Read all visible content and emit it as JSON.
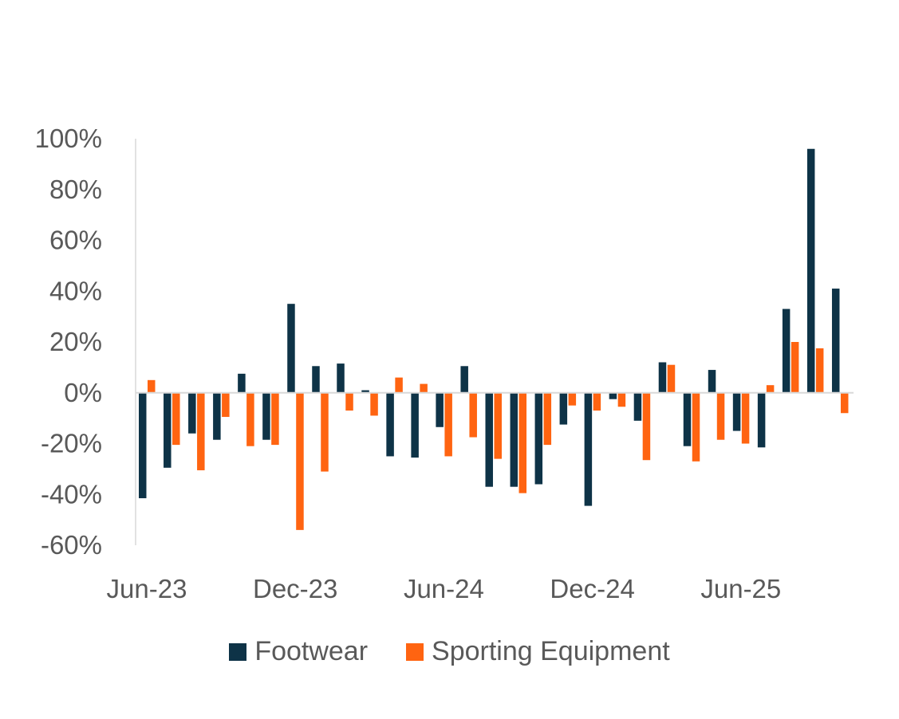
{
  "chart_data": {
    "type": "bar",
    "title": "",
    "xlabel": "",
    "ylabel": "",
    "ylim": [
      -60,
      100
    ],
    "yticks": [
      100,
      80,
      60,
      40,
      20,
      0,
      -20,
      -40,
      -60
    ],
    "ytick_labels": [
      "100%",
      "80%",
      "60%",
      "40%",
      "20%",
      "0%",
      "-20%",
      "-40%",
      "-60%"
    ],
    "xtick_labels": [
      {
        "label": "Jun-23",
        "index": 0
      },
      {
        "label": "Dec-23",
        "index": 6
      },
      {
        "label": "Jun-24",
        "index": 12
      },
      {
        "label": "Dec-24",
        "index": 18
      },
      {
        "label": "Jun-25",
        "index": 24
      }
    ],
    "categories": [
      "Jun-23",
      "Jul-23",
      "Aug-23",
      "Sep-23",
      "Oct-23",
      "Nov-23",
      "Dec-23",
      "Jan-24",
      "Feb-24",
      "Mar-24",
      "Apr-24",
      "May-24",
      "Jun-24",
      "Jul-24",
      "Aug-24",
      "Sep-24",
      "Oct-24",
      "Nov-24",
      "Dec-24",
      "Jan-25",
      "Feb-25",
      "Mar-25",
      "Apr-25",
      "May-25",
      "Jun-25",
      "Jul-25",
      "Aug-25",
      "Sep-25",
      "Oct-25"
    ],
    "series": [
      {
        "name": "Footwear",
        "color": "#0E3347",
        "values": [
          -41.5,
          -29.5,
          -16,
          -18.5,
          7.5,
          -18.5,
          35,
          10.5,
          11.5,
          1,
          -25,
          -25.5,
          -13.5,
          10.5,
          -37,
          -37,
          -36,
          -12.5,
          -44.5,
          -2.5,
          -11,
          12,
          -21,
          9,
          -15,
          -21.5,
          33,
          96,
          41
        ]
      },
      {
        "name": "Sporting Equipment",
        "color": "#FF6411",
        "values": [
          5,
          -20.5,
          -30.5,
          -9.5,
          -21,
          -20.5,
          -54,
          -31,
          -7,
          -9,
          6,
          3.5,
          -25,
          -17.5,
          -26,
          -39.5,
          -20.5,
          -5,
          -7,
          -5.5,
          -26.5,
          11,
          -27,
          -18.5,
          -20,
          3,
          20,
          17.5,
          -8
        ]
      }
    ],
    "legend": {
      "position": "bottom-center"
    }
  }
}
